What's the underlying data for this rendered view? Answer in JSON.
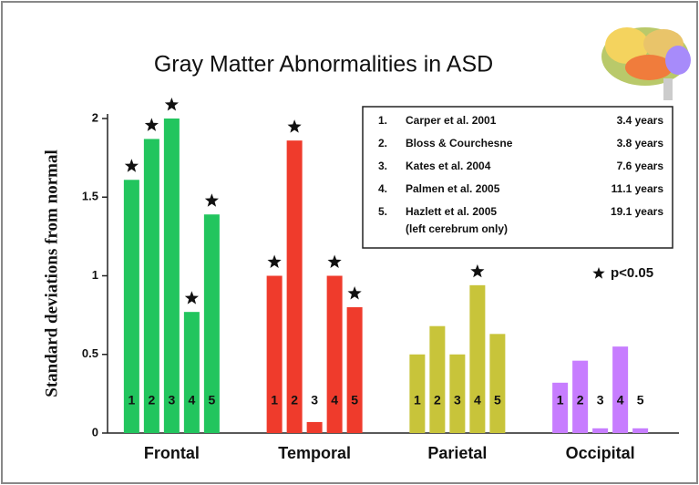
{
  "chart_data": {
    "type": "grouped-bar",
    "title": "Gray Matter Abnormalities in ASD",
    "y_label": "Standard deviations from normal",
    "ylim": [
      0,
      2
    ],
    "yticks": [
      0,
      0.5,
      1,
      1.5,
      2
    ],
    "bar_labels": [
      "1",
      "2",
      "3",
      "4",
      "5"
    ],
    "groups": [
      {
        "name": "Frontal",
        "color": "#22c55e",
        "values": [
          1.61,
          1.87,
          2.0,
          0.77,
          1.39
        ],
        "significant": [
          true,
          true,
          true,
          true,
          true
        ]
      },
      {
        "name": "Temporal",
        "color": "#ef3b2c",
        "values": [
          1.0,
          1.86,
          0.07,
          1.0,
          0.8
        ],
        "significant": [
          true,
          true,
          false,
          true,
          true
        ]
      },
      {
        "name": "Parietal",
        "color": "#c8c43a",
        "values": [
          0.5,
          0.68,
          0.5,
          0.94,
          0.63
        ],
        "significant": [
          false,
          false,
          false,
          true,
          false
        ]
      },
      {
        "name": "Occipital",
        "color": "#c77dff",
        "values": [
          0.32,
          0.46,
          0.03,
          0.55,
          0.03
        ],
        "significant": [
          false,
          false,
          false,
          false,
          false
        ]
      }
    ],
    "legend": [
      {
        "number": "1.",
        "study": "Carper et al. 2001",
        "age": "3.4 years"
      },
      {
        "number": "2.",
        "study": "Bloss  & Courchesne",
        "age": "3.8 years"
      },
      {
        "number": "3.",
        "study": "Kates  et al. 2004",
        "age": "7.6 years"
      },
      {
        "number": "4.",
        "study": "Palmen  et al. 2005",
        "age": "11.1 years"
      },
      {
        "number": "5.",
        "study": "Hazlett  et al. 2005",
        "age": "19.1 years",
        "note": "(left cerebrum only)"
      }
    ],
    "significance_label": "p<0.05"
  }
}
